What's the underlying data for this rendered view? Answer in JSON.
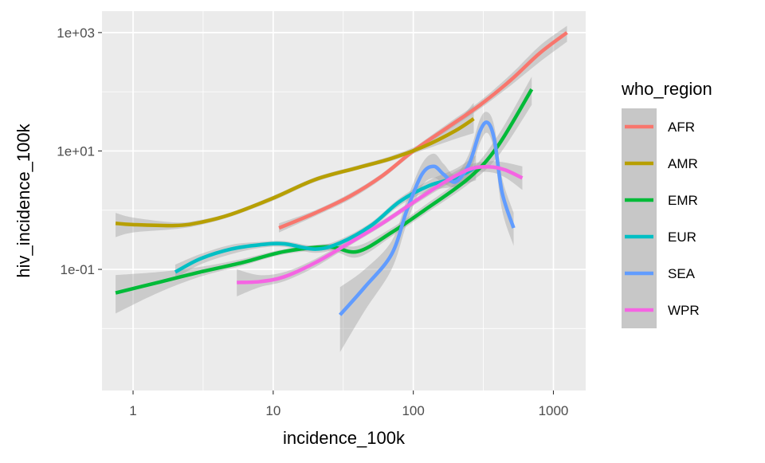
{
  "chart_data": {
    "type": "line",
    "style": "ggplot2 geom_smooth (loess) with grey confidence bands",
    "xlabel": "incidence_100k",
    "ylabel": "hiv_incidence_100k",
    "x_scale": "log10",
    "y_scale": "log10",
    "xlim": [
      0.6,
      1700
    ],
    "ylim": [
      0.0009,
      2300
    ],
    "x_ticks": [
      {
        "value": 1,
        "label": "1"
      },
      {
        "value": 10,
        "label": "10"
      },
      {
        "value": 100,
        "label": "100"
      },
      {
        "value": 1000,
        "label": "1000"
      }
    ],
    "y_ticks": [
      {
        "value": 0.1,
        "label": "1e-01"
      },
      {
        "value": 10,
        "label": "1e+01"
      },
      {
        "value": 1000,
        "label": "1e+03"
      }
    ],
    "grid": true,
    "panel_background": "#ebebeb",
    "band_color": "#999999",
    "legend": {
      "title": "who_region",
      "position": "right",
      "entries": [
        {
          "label": "AFR",
          "color": "#F8766D"
        },
        {
          "label": "AMR",
          "color": "#B79F00"
        },
        {
          "label": "EMR",
          "color": "#00BA38"
        },
        {
          "label": "EUR",
          "color": "#00BFC4"
        },
        {
          "label": "SEA",
          "color": "#619CFF"
        },
        {
          "label": "WPR",
          "color": "#F564E3"
        }
      ]
    },
    "series": [
      {
        "name": "AFR",
        "color": "#F8766D",
        "x": [
          11,
          20,
          35,
          60,
          100,
          180,
          300,
          500,
          800,
          1250
        ],
        "y": [
          0.5,
          0.9,
          1.7,
          3.8,
          10,
          26,
          60,
          160,
          450,
          1000
        ],
        "lower": [
          0.42,
          0.8,
          1.5,
          3.4,
          9,
          23,
          52,
          130,
          320,
          700
        ],
        "upper": [
          0.6,
          1.0,
          1.9,
          4.2,
          11,
          30,
          70,
          200,
          600,
          1300
        ]
      },
      {
        "name": "AMR",
        "color": "#B79F00",
        "x": [
          0.75,
          1,
          2,
          3,
          5,
          10,
          20,
          40,
          70,
          120,
          200,
          270
        ],
        "y": [
          0.6,
          0.57,
          0.55,
          0.62,
          0.85,
          1.6,
          3.3,
          5.2,
          7.5,
          12,
          22,
          35
        ],
        "lower": [
          0.35,
          0.42,
          0.48,
          0.56,
          0.78,
          1.45,
          3.0,
          4.8,
          6.8,
          10.5,
          16,
          20
        ],
        "upper": [
          0.9,
          0.75,
          0.62,
          0.68,
          0.92,
          1.75,
          3.6,
          5.7,
          8.3,
          14,
          30,
          65
        ]
      },
      {
        "name": "EMR",
        "color": "#00BA38",
        "x": [
          0.75,
          1.5,
          3,
          6,
          12,
          25,
          40,
          70,
          120,
          250,
          400,
          700
        ],
        "y": [
          0.04,
          0.06,
          0.09,
          0.13,
          0.2,
          0.24,
          0.2,
          0.42,
          1.0,
          3.5,
          12,
          110
        ],
        "lower": [
          0.018,
          0.04,
          0.075,
          0.115,
          0.18,
          0.21,
          0.16,
          0.36,
          0.85,
          2.8,
          8,
          60
        ],
        "upper": [
          0.08,
          0.09,
          0.11,
          0.15,
          0.22,
          0.27,
          0.25,
          0.5,
          1.2,
          4.4,
          18,
          180
        ]
      },
      {
        "name": "EUR",
        "color": "#00BFC4",
        "x": [
          2,
          3,
          5,
          8,
          12,
          20,
          30,
          50,
          80,
          130,
          200,
          280
        ],
        "y": [
          0.09,
          0.15,
          0.22,
          0.26,
          0.27,
          0.22,
          0.28,
          0.55,
          1.4,
          2.6,
          3.5,
          5.3
        ],
        "lower": [
          0.07,
          0.12,
          0.18,
          0.23,
          0.24,
          0.19,
          0.24,
          0.48,
          1.2,
          2.1,
          2.5,
          3.2
        ],
        "upper": [
          0.12,
          0.18,
          0.26,
          0.29,
          0.3,
          0.25,
          0.32,
          0.62,
          1.6,
          3.2,
          5.0,
          8.5
        ]
      },
      {
        "name": "SEA",
        "color": "#619CFF",
        "x": [
          30,
          45,
          70,
          90,
          115,
          140,
          165,
          200,
          250,
          300,
          340,
          380,
          430,
          520
        ],
        "y": [
          0.017,
          0.05,
          0.18,
          1.0,
          4.0,
          5.5,
          4.0,
          3.0,
          6.0,
          22,
          30,
          15,
          2.0,
          0.5
        ],
        "lower": [
          0.004,
          0.02,
          0.1,
          0.6,
          2.5,
          3.5,
          2.8,
          2.5,
          4.0,
          14,
          20,
          9,
          1.0,
          0.25
        ],
        "upper": [
          0.05,
          0.1,
          0.3,
          1.5,
          6.0,
          9.0,
          6.0,
          4.0,
          9.0,
          35,
          45,
          25,
          3.5,
          0.9
        ]
      },
      {
        "name": "WPR",
        "color": "#F564E3",
        "x": [
          5.5,
          8,
          12,
          20,
          35,
          60,
          100,
          160,
          250,
          350,
          450,
          600
        ],
        "y": [
          0.06,
          0.062,
          0.075,
          0.13,
          0.28,
          0.6,
          1.35,
          2.8,
          4.9,
          5.4,
          4.8,
          3.5
        ],
        "lower": [
          0.035,
          0.05,
          0.063,
          0.11,
          0.25,
          0.54,
          1.2,
          2.4,
          4.1,
          4.4,
          3.6,
          2.2
        ],
        "upper": [
          0.1,
          0.08,
          0.09,
          0.15,
          0.32,
          0.67,
          1.5,
          3.3,
          5.8,
          6.7,
          6.4,
          5.5
        ]
      }
    ]
  }
}
